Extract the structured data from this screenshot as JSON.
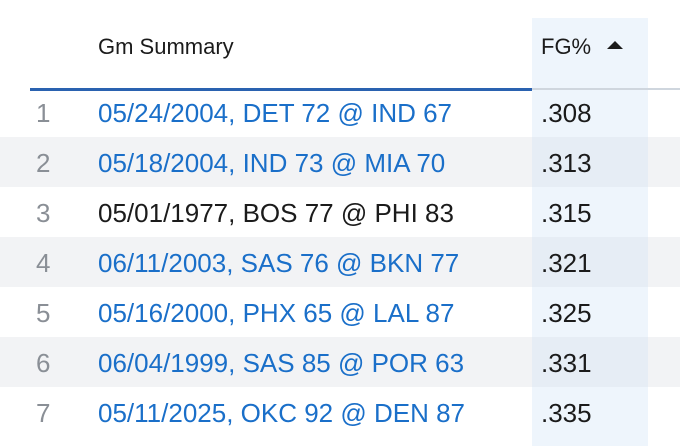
{
  "header": {
    "summary_label": "Gm Summary",
    "fg_label": "FG%",
    "sort_direction": "ascending"
  },
  "rows": [
    {
      "rank": "1",
      "game": "05/24/2004, DET 72 @ IND 67",
      "fg": ".308",
      "link": true
    },
    {
      "rank": "2",
      "game": "05/18/2004, IND 73 @ MIA 70",
      "fg": ".313",
      "link": true
    },
    {
      "rank": "3",
      "game": "05/01/1977, BOS 77 @ PHI 83",
      "fg": ".315",
      "link": false
    },
    {
      "rank": "4",
      "game": "06/11/2003, SAS 76 @ BKN 77",
      "fg": ".321",
      "link": true
    },
    {
      "rank": "5",
      "game": "05/16/2000, PHX 65 @ LAL 87",
      "fg": ".325",
      "link": true
    },
    {
      "rank": "6",
      "game": "06/04/1999, SAS 85 @ POR 63",
      "fg": ".331",
      "link": true
    },
    {
      "rank": "7",
      "game": "05/11/2025, OKC 92 @ DEN 87",
      "fg": ".335",
      "link": true
    }
  ],
  "colors": {
    "link": "#1a6fc9",
    "header_underline": "#2a62b0",
    "sorted_column_bg": "#eef5fc",
    "alt_row_bg": "#f2f3f5"
  }
}
